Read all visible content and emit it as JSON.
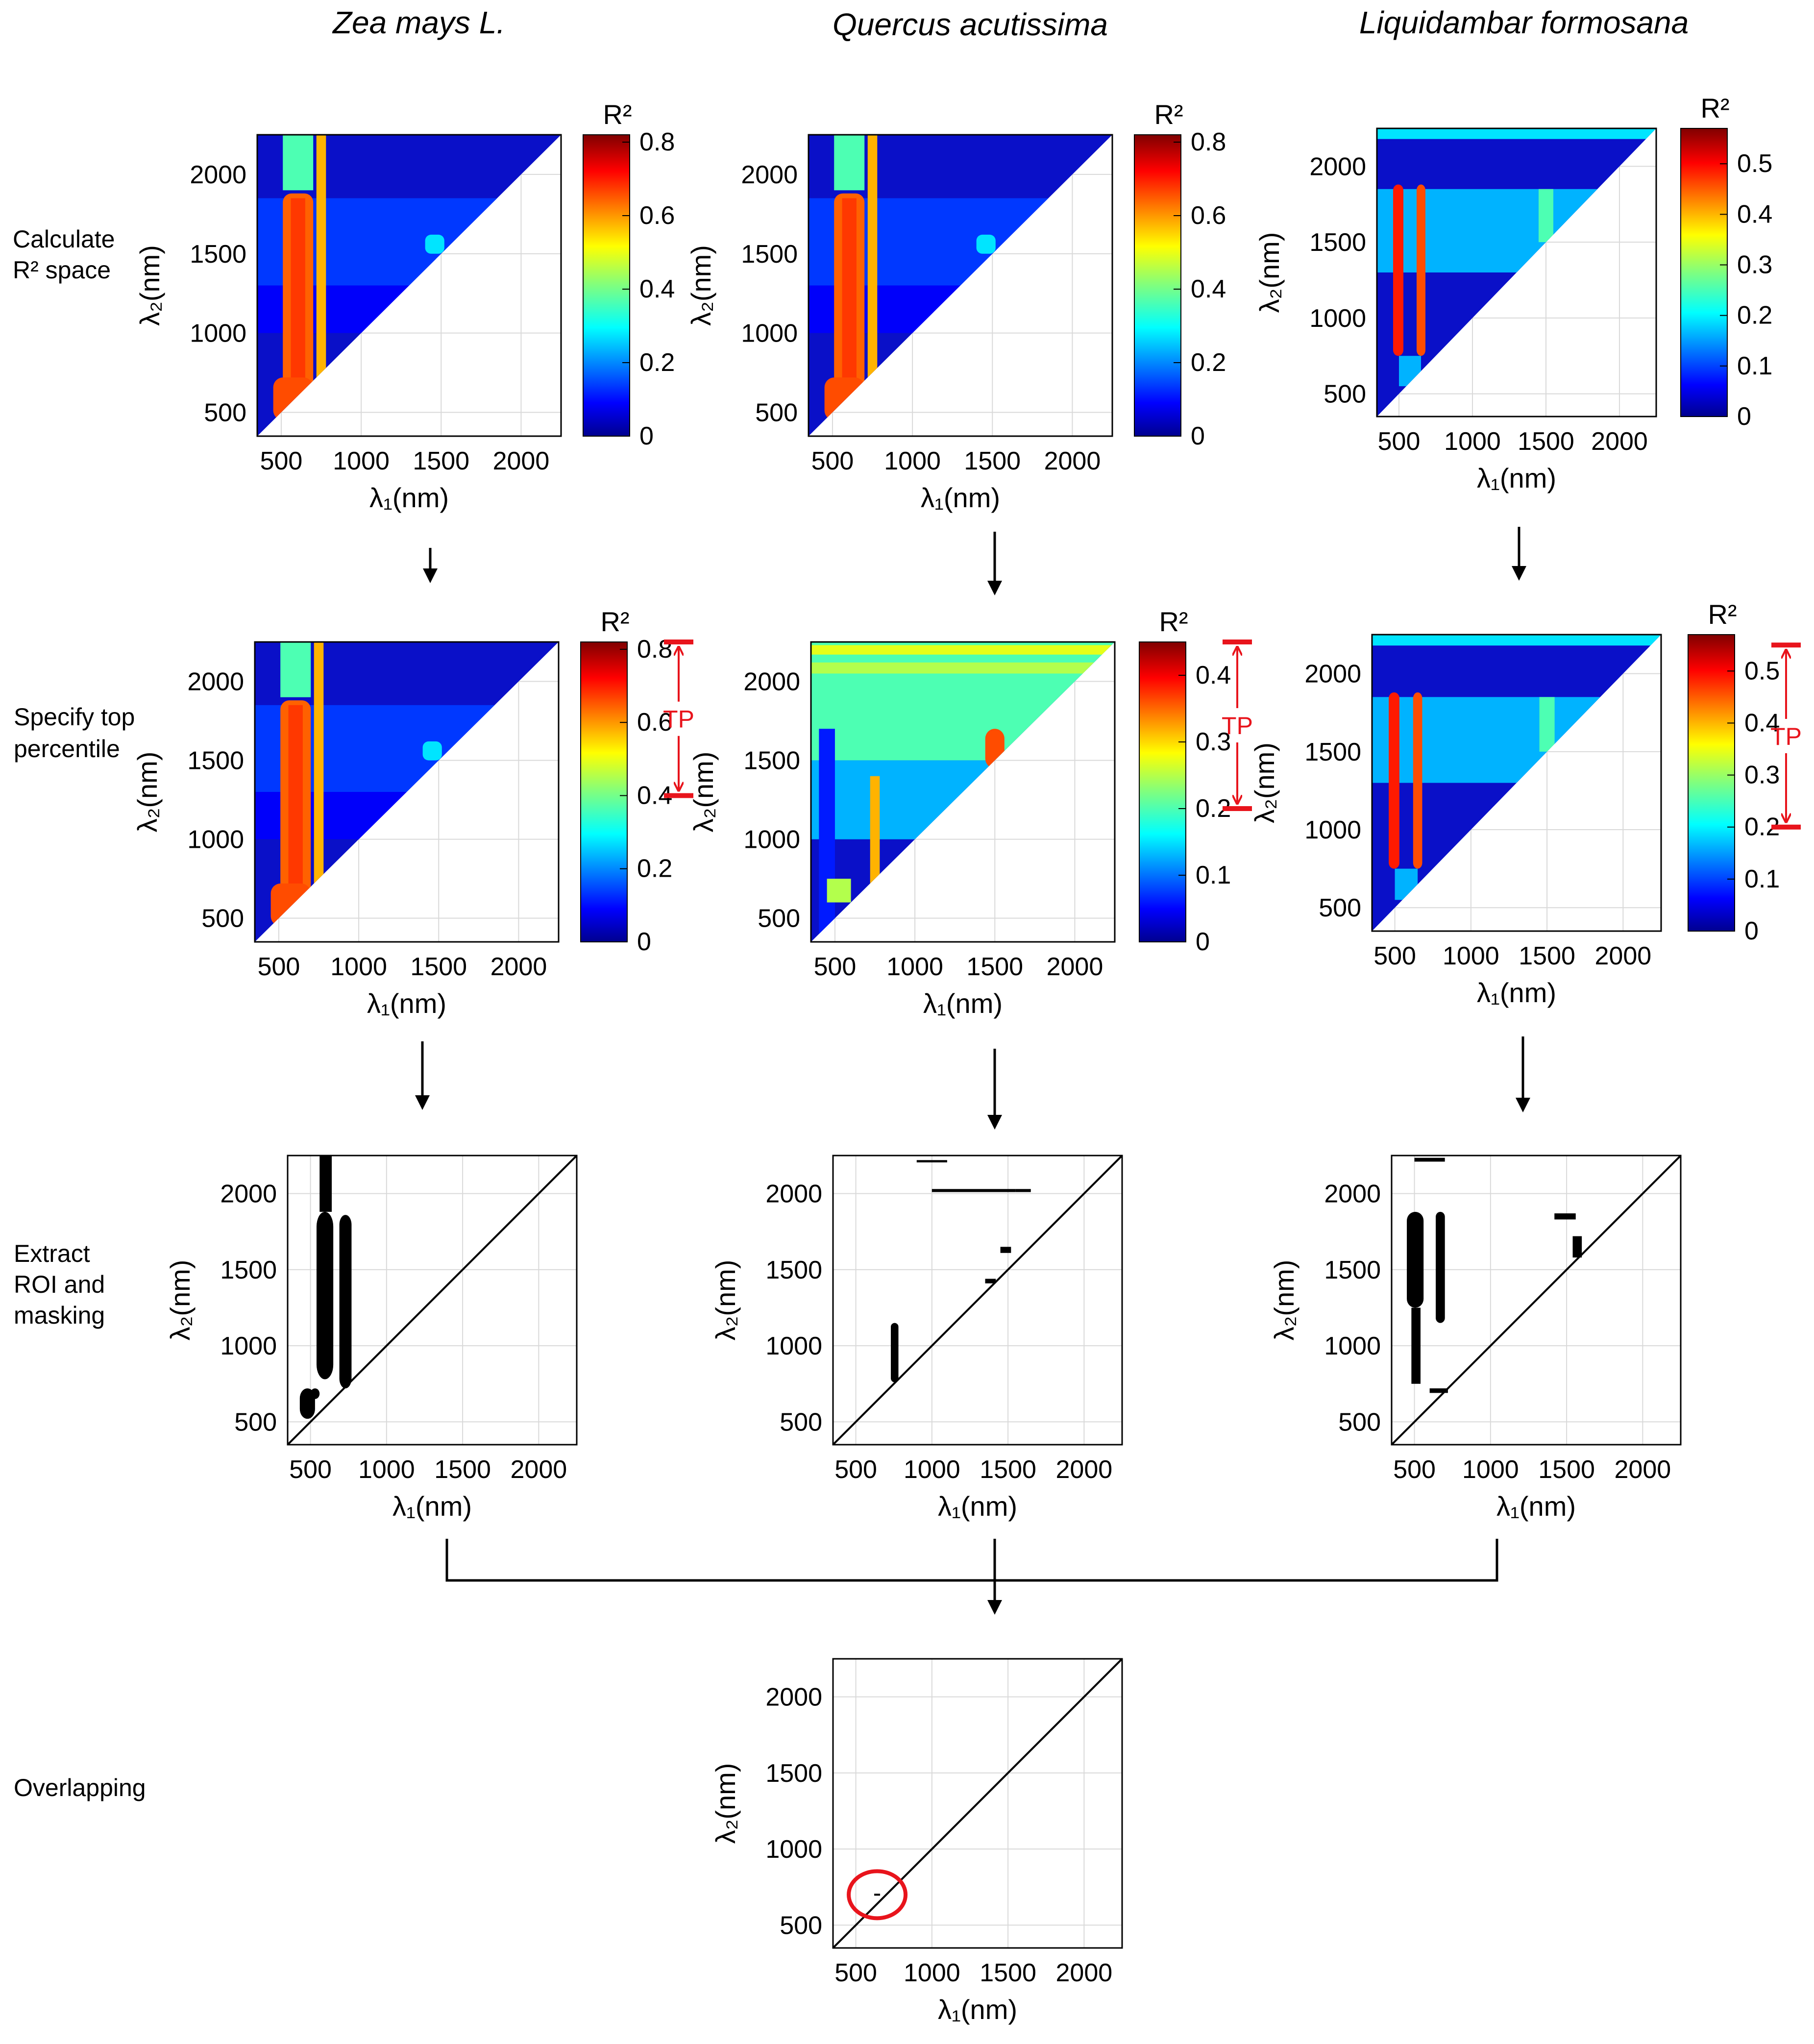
{
  "species": [
    {
      "name": "Zea mays L."
    },
    {
      "name": "Quercus acutissima"
    },
    {
      "name": "Liquidambar formosana"
    }
  ],
  "row_labels": [
    [
      "Calculate",
      "R² space"
    ],
    [
      "Specify top",
      "percentile"
    ],
    [
      "Extract",
      "ROI and",
      "masking"
    ],
    [
      "Overlapping"
    ]
  ],
  "axis": {
    "x_label": "λ₁(nm)",
    "y_label": "λ₂(nm)",
    "ticks": [
      "500",
      "1000",
      "1500",
      "2000"
    ],
    "tick_values": [
      500,
      1000,
      1500,
      2000
    ],
    "range": [
      350,
      2250
    ]
  },
  "colorbar": {
    "title": "R²",
    "colormap": "jet",
    "ticks_zea": [
      "0",
      "0.2",
      "0.4",
      "0.6",
      "0.8"
    ],
    "ticks_zea_values": [
      0,
      0.2,
      0.4,
      0.6,
      0.8
    ],
    "ticks_zea_max": 0.82,
    "ticks_quercus_calc": [
      "0",
      "0.2",
      "0.4",
      "0.6",
      "0.8"
    ],
    "ticks_quercus_calc_values": [
      0,
      0.2,
      0.4,
      0.6,
      0.8
    ],
    "ticks_quercus_calc_max": 0.82,
    "ticks_quercus_tp": [
      "0",
      "0.1",
      "0.2",
      "0.3",
      "0.4"
    ],
    "ticks_quercus_tp_values": [
      0,
      0.1,
      0.2,
      0.3,
      0.4
    ],
    "ticks_quercus_tp_max": 0.45,
    "ticks_liq": [
      "0",
      "0.1",
      "0.2",
      "0.3",
      "0.4",
      "0.5"
    ],
    "ticks_liq_values": [
      0,
      0.1,
      0.2,
      0.3,
      0.4,
      0.5
    ],
    "ticks_liq_max": 0.57
  },
  "top_percentile": {
    "label": "TP",
    "color": "#e8141c",
    "zea": [
      0.4,
      0.82
    ],
    "quercus": [
      0.2,
      0.45
    ],
    "liq": [
      0.2,
      0.55
    ]
  },
  "colors": {
    "heatmap_background": "#0a10c8",
    "mask": "#000000",
    "highlight_circle": "#e8141c",
    "grid": "#d9d9d9"
  },
  "chart_data": {
    "type": "heatmap",
    "description_of_axes": "wavelength pair grid",
    "overlap_result": {
      "lambda1": 640,
      "lambda2": 700
    }
  }
}
